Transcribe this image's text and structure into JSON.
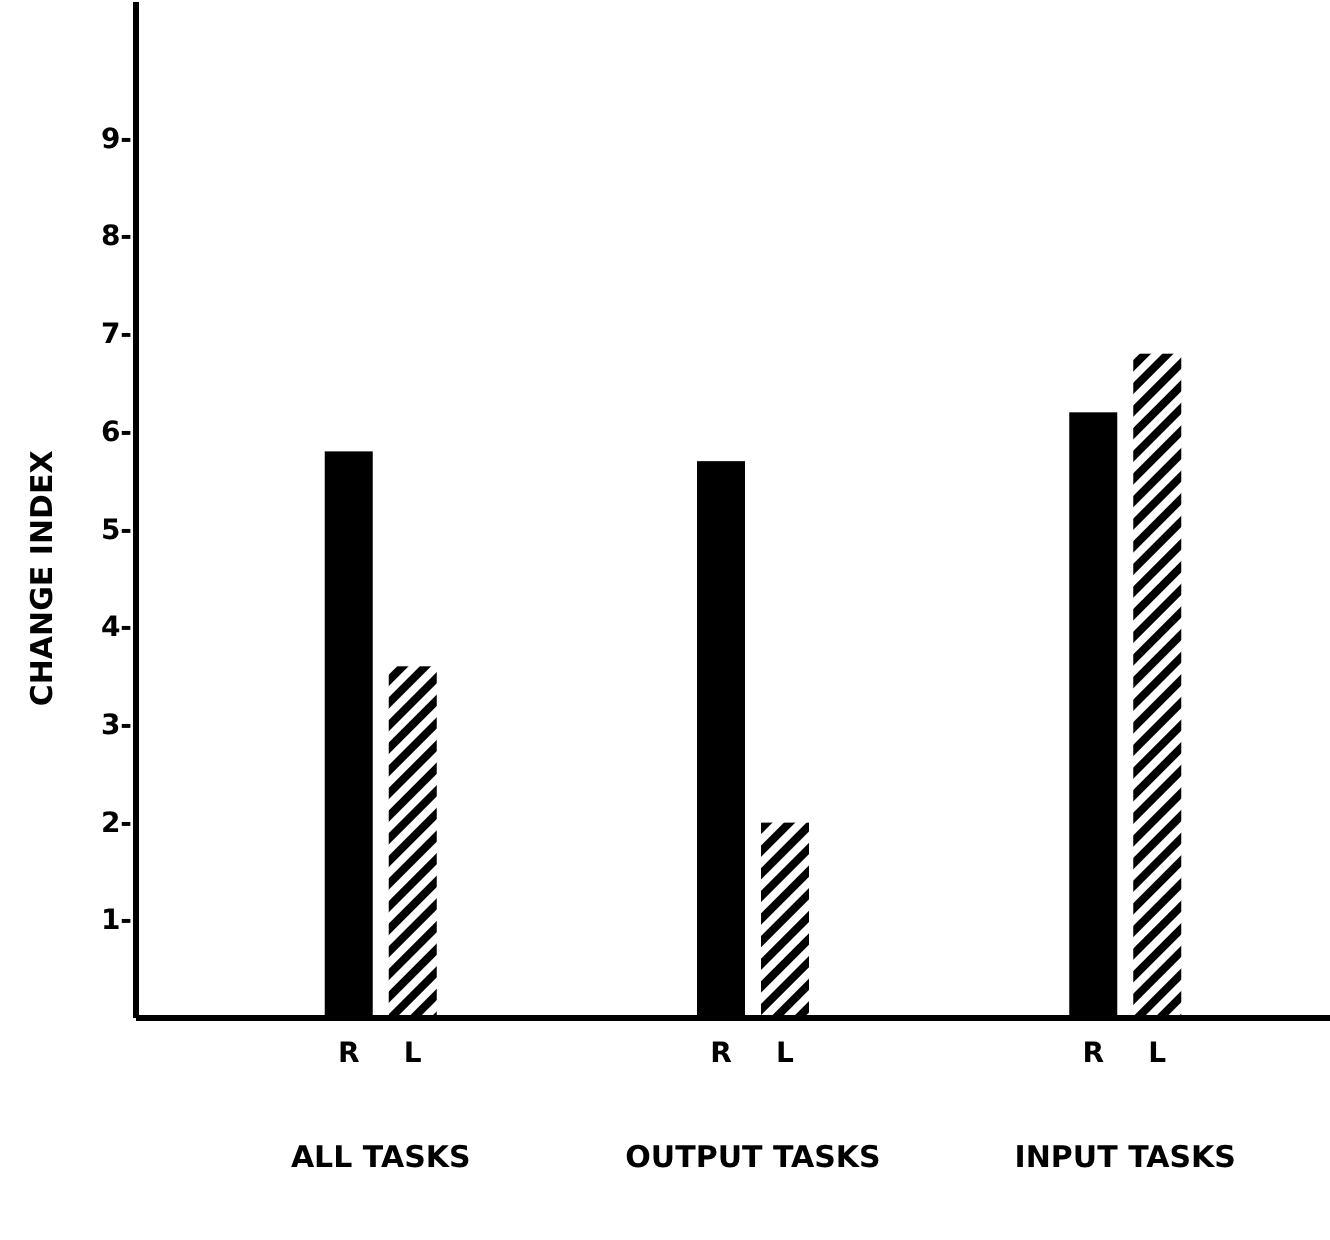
{
  "chart_data": {
    "type": "bar",
    "ylabel": "CHANGE INDEX",
    "categories": [
      "ALL TASKS",
      "OUTPUT TASKS",
      "INPUT TASKS"
    ],
    "series": [
      {
        "name": "R",
        "color": "#000000",
        "values": [
          5.8,
          5.7,
          6.2
        ]
      },
      {
        "name": "L",
        "color": "#000000",
        "values": [
          3.6,
          2.0,
          6.8
        ]
      }
    ],
    "ylim": [
      0,
      10.4
    ],
    "yticks": [
      {
        "value": 1,
        "label": "1-"
      },
      {
        "value": 2,
        "label": "2-"
      },
      {
        "value": 3,
        "label": "3-"
      },
      {
        "value": 4,
        "label": "4-"
      },
      {
        "value": 5,
        "label": "5-"
      },
      {
        "value": 6,
        "label": "6-"
      },
      {
        "value": 7,
        "label": "7-"
      },
      {
        "value": 8,
        "label": "8-"
      },
      {
        "value": 9,
        "label": "9-"
      }
    ],
    "grid": false,
    "legend": false
  }
}
